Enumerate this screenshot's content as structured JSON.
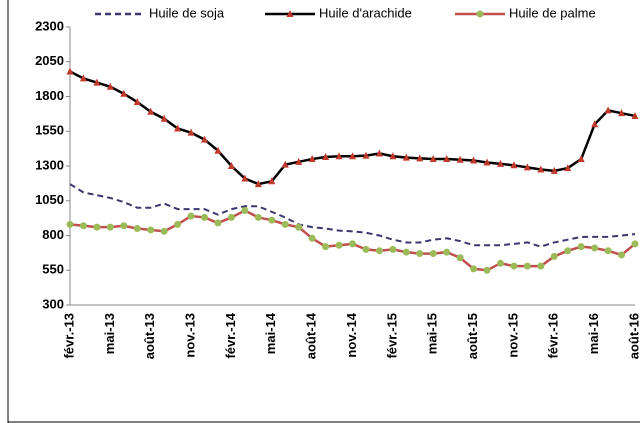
{
  "chart_data": {
    "type": "line",
    "categories": [
      "févr.-13",
      null,
      null,
      "mai-13",
      null,
      null,
      "août-13",
      null,
      null,
      "nov.-13",
      null,
      null,
      "févr.-14",
      null,
      null,
      "mai-14",
      null,
      null,
      "août-14",
      null,
      null,
      "nov.-14",
      null,
      null,
      "févr.-15",
      null,
      null,
      "mai-15",
      null,
      null,
      "août-15",
      null,
      null,
      "nov.-15",
      null,
      null,
      "févr.-16",
      null,
      null,
      "mai-16",
      null,
      null,
      "août-16"
    ],
    "series": [
      {
        "name": "Huile de soja",
        "color": "#3b3870",
        "dash": true,
        "marker": "none",
        "values": [
          1170,
          1110,
          1090,
          1070,
          1040,
          1000,
          1000,
          1030,
          990,
          990,
          990,
          950,
          990,
          1010,
          1010,
          970,
          930,
          880,
          860,
          850,
          835,
          830,
          820,
          800,
          770,
          750,
          750,
          770,
          780,
          760,
          730,
          730,
          730,
          740,
          750,
          720,
          750,
          770,
          790,
          790,
          790,
          800,
          810
        ]
      },
      {
        "name": "Huile d'arachide",
        "color": "#000000",
        "dash": false,
        "marker": "triangle",
        "marker_color": "#c0392b",
        "values": [
          1980,
          1930,
          1900,
          1870,
          1820,
          1760,
          1690,
          1640,
          1570,
          1540,
          1490,
          1410,
          1300,
          1210,
          1170,
          1190,
          1310,
          1330,
          1350,
          1365,
          1370,
          1370,
          1375,
          1390,
          1370,
          1360,
          1355,
          1350,
          1350,
          1345,
          1340,
          1325,
          1315,
          1305,
          1290,
          1275,
          1265,
          1285,
          1350,
          1600,
          1700,
          1680,
          1660
        ]
      },
      {
        "name": "Huile de palme",
        "color": "#c0504d",
        "dash": false,
        "marker": "circle",
        "marker_color": "#9bbb59",
        "values": [
          880,
          870,
          860,
          860,
          870,
          850,
          840,
          830,
          880,
          940,
          930,
          890,
          930,
          980,
          930,
          910,
          880,
          860,
          780,
          720,
          730,
          740,
          700,
          690,
          700,
          680,
          670,
          670,
          680,
          640,
          560,
          550,
          600,
          580,
          580,
          580,
          650,
          690,
          720,
          710,
          690,
          660,
          740
        ]
      }
    ],
    "ylim": [
      300,
      2300
    ],
    "yticks": [
      300,
      550,
      800,
      1050,
      1300,
      1550,
      1800,
      2050,
      2300
    ],
    "grid": false,
    "legend": "top"
  }
}
